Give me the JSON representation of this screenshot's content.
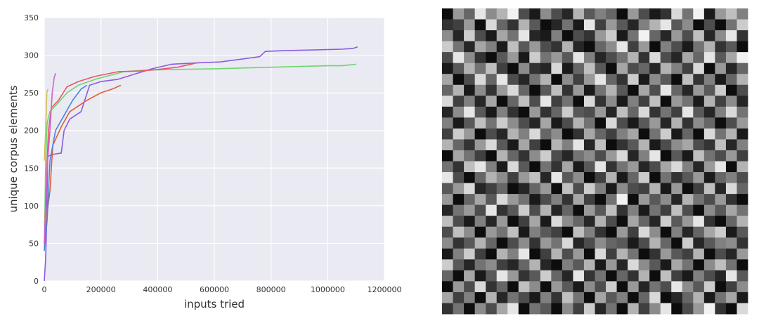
{
  "chart_data": [
    {
      "type": "line",
      "title": "",
      "xlabel": "inputs tried",
      "ylabel": "unique corpus elements",
      "xlim": [
        0,
        1200000
      ],
      "ylim": [
        0,
        350
      ],
      "xticks": [
        0,
        200000,
        400000,
        600000,
        800000,
        1000000,
        1200000
      ],
      "yticks": [
        0,
        50,
        100,
        150,
        200,
        250,
        300,
        350
      ],
      "grid": true,
      "background": "#eaeaf2",
      "series": [
        {
          "color": "#8c5ce0",
          "points": [
            [
              0,
              0
            ],
            [
              5000,
              30
            ],
            [
              8000,
              70
            ],
            [
              12000,
              165
            ],
            [
              25000,
              168
            ],
            [
              60000,
              170
            ],
            [
              70000,
              200
            ],
            [
              90000,
              215
            ],
            [
              130000,
              225
            ],
            [
              160000,
              260
            ],
            [
              200000,
              265
            ],
            [
              260000,
              268
            ],
            [
              320000,
              275
            ],
            [
              380000,
              282
            ],
            [
              450000,
              288
            ],
            [
              550000,
              290
            ],
            [
              620000,
              291
            ],
            [
              700000,
              295
            ],
            [
              760000,
              298
            ],
            [
              780000,
              305
            ],
            [
              850000,
              306
            ],
            [
              950000,
              307
            ],
            [
              1050000,
              308
            ],
            [
              1090000,
              309
            ],
            [
              1105000,
              311
            ]
          ]
        },
        {
          "color": "#6fd46f",
          "points": [
            [
              0,
              40
            ],
            [
              5000,
              160
            ],
            [
              10000,
              210
            ],
            [
              20000,
              225
            ],
            [
              45000,
              235
            ],
            [
              80000,
              250
            ],
            [
              120000,
              260
            ],
            [
              180000,
              268
            ],
            [
              280000,
              278
            ],
            [
              350000,
              280
            ],
            [
              450000,
              281
            ],
            [
              600000,
              282
            ],
            [
              800000,
              284
            ],
            [
              1000000,
              286
            ],
            [
              1050000,
              286
            ],
            [
              1100000,
              288
            ]
          ]
        },
        {
          "color": "#e8556c",
          "points": [
            [
              0,
              50
            ],
            [
              8000,
              140
            ],
            [
              15000,
              200
            ],
            [
              25000,
              230
            ],
            [
              50000,
              240
            ],
            [
              80000,
              258
            ],
            [
              120000,
              265
            ],
            [
              180000,
              272
            ],
            [
              260000,
              278
            ],
            [
              340000,
              279
            ],
            [
              400000,
              281
            ],
            [
              470000,
              284
            ],
            [
              540000,
              290
            ]
          ]
        },
        {
          "color": "#d0c058",
          "points": [
            [
              0,
              160
            ],
            [
              5000,
              200
            ],
            [
              9000,
              250
            ],
            [
              13000,
              255
            ]
          ]
        },
        {
          "color": "#e05c38",
          "points": [
            [
              0,
              50
            ],
            [
              10000,
              90
            ],
            [
              20000,
              120
            ],
            [
              30000,
              180
            ],
            [
              60000,
              205
            ],
            [
              90000,
              225
            ],
            [
              150000,
              240
            ],
            [
              200000,
              250
            ],
            [
              240000,
              255
            ],
            [
              270000,
              260
            ]
          ]
        },
        {
          "color": "#4b84e0",
          "points": [
            [
              0,
              40
            ],
            [
              10000,
              80
            ],
            [
              20000,
              160
            ],
            [
              40000,
              200
            ],
            [
              70000,
              220
            ],
            [
              100000,
              240
            ],
            [
              130000,
              255
            ],
            [
              150000,
              260
            ]
          ]
        },
        {
          "color": "#cc66cc",
          "points": [
            [
              0,
              50
            ],
            [
              10000,
              150
            ],
            [
              20000,
              200
            ],
            [
              28000,
              250
            ],
            [
              35000,
              270
            ],
            [
              40000,
              276
            ]
          ]
        }
      ]
    },
    {
      "type": "heatmap",
      "title": "",
      "rows": 28,
      "cols": 28,
      "colormap": "grayscale",
      "values": [
        [
          0.05,
          0.6,
          0.4,
          0.9,
          0.55,
          0.7,
          0.95,
          0.3,
          0.1,
          0.55,
          0.3,
          0.15,
          0.7,
          0.35,
          0.5,
          0.4,
          0.05,
          0.6,
          0.3,
          0.1,
          0.2,
          0.85,
          0.45,
          0.95,
          0.1,
          0.6,
          0.75,
          0.5
        ],
        [
          0.2,
          0.25,
          0.6,
          0.05,
          0.85,
          0.4,
          0.2,
          0.7,
          0.35,
          0.05,
          0.15,
          0.45,
          0.1,
          0.9,
          0.25,
          0.6,
          0.35,
          0.15,
          0.5,
          0.7,
          0.9,
          0.35,
          0.55,
          0.05,
          0.3,
          0.05,
          0.45,
          0.8
        ],
        [
          0.55,
          0.15,
          0.8,
          0.3,
          0.1,
          0.65,
          0.45,
          0.9,
          0.15,
          0.1,
          0.5,
          0.05,
          0.3,
          0.2,
          0.6,
          0.8,
          0.1,
          0.45,
          0.95,
          0.4,
          0.15,
          0.6,
          0.3,
          0.75,
          0.15,
          0.55,
          0.9,
          0.2
        ],
        [
          0.8,
          0.45,
          0.15,
          0.65,
          0.5,
          0.1,
          0.75,
          0.35,
          0.6,
          0.3,
          0.2,
          0.7,
          0.15,
          0.05,
          0.4,
          0.55,
          0.9,
          0.25,
          0.6,
          0.05,
          0.5,
          0.3,
          0.1,
          0.45,
          0.7,
          0.2,
          0.35,
          0.05
        ],
        [
          0.3,
          0.9,
          0.55,
          0.2,
          0.05,
          0.35,
          0.6,
          0.1,
          0.8,
          0.45,
          0.6,
          0.35,
          0.9,
          0.5,
          0.15,
          0.3,
          0.45,
          0.7,
          0.2,
          0.85,
          0.3,
          0.15,
          0.65,
          0.4,
          0.9,
          0.35,
          0.65,
          0.95
        ],
        [
          0.1,
          0.35,
          0.7,
          0.45,
          0.75,
          0.25,
          0.05,
          0.55,
          0.2,
          0.15,
          0.85,
          0.1,
          0.4,
          0.75,
          0.35,
          0.05,
          0.65,
          0.3,
          0.4,
          0.15,
          0.7,
          0.5,
          0.25,
          0.85,
          0.05,
          0.6,
          0.15,
          0.4
        ],
        [
          0.65,
          0.05,
          0.3,
          0.85,
          0.4,
          0.9,
          0.3,
          0.15,
          0.45,
          0.7,
          0.05,
          0.55,
          0.25,
          0.6,
          0.9,
          0.4,
          0.2,
          0.8,
          0.1,
          0.55,
          0.35,
          0.05,
          0.75,
          0.2,
          0.5,
          0.1,
          0.4,
          0.7
        ],
        [
          0.4,
          0.7,
          0.1,
          0.55,
          0.2,
          0.6,
          0.85,
          0.4,
          0.05,
          0.35,
          0.75,
          0.2,
          0.6,
          0.1,
          0.45,
          0.7,
          0.35,
          0.05,
          0.65,
          0.3,
          0.9,
          0.4,
          0.15,
          0.6,
          0.35,
          0.8,
          0.05,
          0.3
        ],
        [
          0.85,
          0.25,
          0.5,
          0.15,
          0.65,
          0.05,
          0.4,
          0.75,
          0.3,
          0.9,
          0.25,
          0.45,
          0.05,
          0.85,
          0.2,
          0.55,
          0.1,
          0.5,
          0.25,
          0.75,
          0.05,
          0.6,
          0.45,
          0.1,
          0.7,
          0.25,
          0.55,
          0.15
        ],
        [
          0.15,
          0.55,
          0.9,
          0.35,
          0.1,
          0.5,
          0.2,
          0.05,
          0.6,
          0.2,
          0.4,
          0.8,
          0.35,
          0.3,
          0.6,
          0.15,
          0.75,
          0.4,
          0.85,
          0.2,
          0.45,
          0.25,
          0.9,
          0.35,
          0.15,
          0.5,
          0.85,
          0.45
        ],
        [
          0.5,
          0.1,
          0.35,
          0.75,
          0.45,
          0.8,
          0.55,
          0.3,
          0.15,
          0.65,
          0.1,
          0.3,
          0.7,
          0.45,
          0.05,
          0.85,
          0.3,
          0.1,
          0.35,
          0.6,
          0.15,
          0.7,
          0.2,
          0.55,
          0.4,
          0.05,
          0.3,
          0.6
        ],
        [
          0.25,
          0.8,
          0.6,
          0.05,
          0.3,
          0.15,
          0.7,
          0.5,
          0.85,
          0.4,
          0.55,
          0.05,
          0.2,
          0.65,
          0.4,
          0.25,
          0.5,
          0.65,
          0.05,
          0.45,
          0.8,
          0.1,
          0.4,
          0.05,
          0.85,
          0.45,
          0.7,
          0.1
        ],
        [
          0.7,
          0.4,
          0.2,
          0.6,
          0.85,
          0.35,
          0.1,
          0.65,
          0.25,
          0.05,
          0.7,
          0.5,
          0.9,
          0.15,
          0.75,
          0.05,
          0.2,
          0.35,
          0.7,
          0.1,
          0.3,
          0.55,
          0.65,
          0.3,
          0.2,
          0.75,
          0.15,
          0.5
        ],
        [
          0.05,
          0.65,
          0.45,
          0.25,
          0.05,
          0.7,
          0.4,
          0.2,
          0.55,
          0.8,
          0.3,
          0.15,
          0.45,
          0.55,
          0.3,
          0.6,
          0.85,
          0.15,
          0.5,
          0.9,
          0.05,
          0.35,
          0.1,
          0.75,
          0.45,
          0.3,
          0.6,
          0.25
        ],
        [
          0.45,
          0.2,
          0.75,
          0.9,
          0.5,
          0.1,
          0.85,
          0.35,
          0.05,
          0.45,
          0.2,
          0.65,
          0.1,
          0.35,
          0.9,
          0.2,
          0.45,
          0.6,
          0.15,
          0.3,
          0.65,
          0.85,
          0.5,
          0.15,
          0.6,
          0.9,
          0.05,
          0.7
        ],
        [
          0.9,
          0.3,
          0.05,
          0.4,
          0.7,
          0.55,
          0.25,
          0.6,
          0.75,
          0.15,
          0.9,
          0.35,
          0.55,
          0.05,
          0.25,
          0.7,
          0.1,
          0.4,
          0.8,
          0.05,
          0.45,
          0.2,
          0.35,
          0.6,
          0.1,
          0.4,
          0.5,
          0.3
        ],
        [
          0.35,
          0.6,
          0.85,
          0.15,
          0.25,
          0.4,
          0.05,
          0.15,
          0.4,
          0.6,
          0.05,
          0.75,
          0.3,
          0.8,
          0.5,
          0.1,
          0.55,
          0.3,
          0.25,
          0.7,
          0.1,
          0.6,
          0.05,
          0.25,
          0.75,
          0.15,
          0.85,
          0.4
        ],
        [
          0.6,
          0.05,
          0.4,
          0.65,
          0.35,
          0.85,
          0.6,
          0.45,
          0.1,
          0.3,
          0.5,
          0.2,
          0.65,
          0.25,
          0.05,
          0.45,
          0.95,
          0.05,
          0.6,
          0.35,
          0.55,
          0.15,
          0.7,
          0.45,
          0.3,
          0.6,
          0.2,
          0.05
        ],
        [
          0.15,
          0.45,
          0.6,
          0.3,
          0.9,
          0.2,
          0.35,
          0.8,
          0.3,
          0.7,
          0.15,
          0.4,
          0.05,
          0.6,
          0.35,
          0.75,
          0.2,
          0.5,
          0.1,
          0.45,
          0.25,
          0.75,
          0.3,
          0.05,
          0.55,
          0.35,
          0.65,
          0.45
        ],
        [
          0.75,
          0.3,
          0.1,
          0.5,
          0.15,
          0.6,
          0.05,
          0.25,
          0.65,
          0.1,
          0.85,
          0.55,
          0.4,
          0.15,
          0.7,
          0.3,
          0.05,
          0.65,
          0.4,
          0.15,
          0.8,
          0.35,
          0.6,
          0.9,
          0.2,
          0.05,
          0.4,
          0.7
        ],
        [
          0.3,
          0.75,
          0.55,
          0.05,
          0.6,
          0.45,
          0.75,
          0.1,
          0.5,
          0.35,
          0.25,
          0.05,
          0.75,
          0.5,
          0.2,
          0.05,
          0.6,
          0.25,
          0.85,
          0.55,
          0.05,
          0.5,
          0.15,
          0.4,
          0.65,
          0.8,
          0.1,
          0.35
        ],
        [
          0.55,
          0.2,
          0.35,
          0.7,
          0.4,
          0.05,
          0.3,
          0.55,
          0.2,
          0.6,
          0.45,
          0.85,
          0.15,
          0.3,
          0.55,
          0.4,
          0.35,
          0.1,
          0.3,
          0.7,
          0.4,
          0.05,
          0.8,
          0.15,
          0.35,
          0.5,
          0.55,
          0.2
        ],
        [
          0.1,
          0.5,
          0.8,
          0.25,
          0.05,
          0.7,
          0.5,
          0.9,
          0.05,
          0.25,
          0.7,
          0.3,
          0.6,
          0.05,
          0.85,
          0.25,
          0.7,
          0.45,
          0.05,
          0.2,
          0.6,
          0.35,
          0.25,
          0.7,
          0.05,
          0.3,
          0.15,
          0.6
        ],
        [
          0.8,
          0.35,
          0.15,
          0.45,
          0.55,
          0.25,
          0.15,
          0.4,
          0.7,
          0.15,
          0.05,
          0.5,
          0.35,
          0.7,
          0.1,
          0.6,
          0.15,
          0.85,
          0.55,
          0.35,
          0.1,
          0.65,
          0.45,
          0.05,
          0.55,
          0.75,
          0.45,
          0.05
        ],
        [
          0.4,
          0.05,
          0.65,
          0.1,
          0.35,
          0.9,
          0.6,
          0.2,
          0.35,
          0.8,
          0.4,
          0.15,
          0.9,
          0.2,
          0.45,
          0.05,
          0.4,
          0.2,
          0.7,
          0.05,
          0.75,
          0.25,
          0.1,
          0.5,
          0.3,
          0.15,
          0.9,
          0.35
        ],
        [
          0.05,
          0.6,
          0.3,
          0.85,
          0.2,
          0.4,
          0.05,
          0.75,
          0.55,
          0.05,
          0.6,
          0.35,
          0.1,
          0.55,
          0.3,
          0.8,
          0.05,
          0.6,
          0.15,
          0.45,
          0.3,
          0.9,
          0.55,
          0.35,
          0.8,
          0.05,
          0.25,
          0.55
        ],
        [
          0.65,
          0.25,
          0.5,
          0.05,
          0.7,
          0.15,
          0.45,
          0.3,
          0.1,
          0.5,
          0.2,
          0.75,
          0.45,
          0.05,
          0.65,
          0.35,
          0.5,
          0.05,
          0.4,
          0.85,
          0.05,
          0.15,
          0.4,
          0.7,
          0.1,
          0.45,
          0.65,
          0.1
        ],
        [
          0.2,
          0.45,
          0.05,
          0.55,
          0.3,
          0.65,
          0.9,
          0.05,
          0.45,
          0.35,
          0.05,
          0.55,
          0.25,
          0.8,
          0.15,
          0.45,
          0.05,
          0.7,
          0.25,
          0.55,
          0.9,
          0.05,
          0.3,
          0.6,
          0.95,
          0.2,
          0.05,
          0.85
        ]
      ]
    }
  ]
}
